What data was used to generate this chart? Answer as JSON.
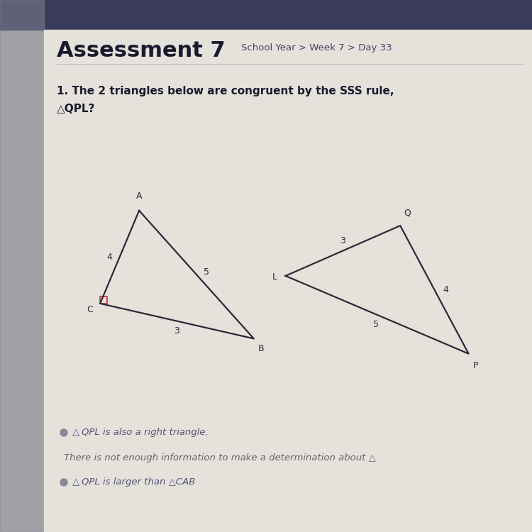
{
  "bg_color": "#ddd9d3",
  "header_bg": "#3a3a5c",
  "sidebar_color": "#888888",
  "page_bg": "#e5e1db",
  "title_large": "Assessment 7",
  "title_small": "School Year > Week 7 > Day 33",
  "question_line1": "1. The 2 triangles below are congruent by the SSS rule,",
  "question_line2": "△QPL?",
  "tri1": {
    "A": [
      0.195,
      0.64
    ],
    "C": [
      0.115,
      0.455
    ],
    "B": [
      0.43,
      0.385
    ],
    "label_A": "A",
    "label_C": "C",
    "label_B": "B",
    "side_AC": "4",
    "side_AB": "5",
    "side_CB": "3"
  },
  "tri2": {
    "L": [
      0.495,
      0.51
    ],
    "Q": [
      0.73,
      0.61
    ],
    "P": [
      0.87,
      0.355
    ],
    "label_L": "L",
    "label_Q": "Q",
    "label_P": "P",
    "side_LQ": "3",
    "side_LP": "5",
    "side_QP": "4"
  },
  "answer_lines": [
    "△QPL is also a right triangle.",
    "There is not enough information to make a determination about △",
    "△QPL is larger than △CAB"
  ],
  "answer_colors": [
    "#555577",
    "#666666",
    "#555577"
  ],
  "line_color": "#2a2a3a",
  "right_angle_color": "#cc3333",
  "bullet_color": "#888899"
}
